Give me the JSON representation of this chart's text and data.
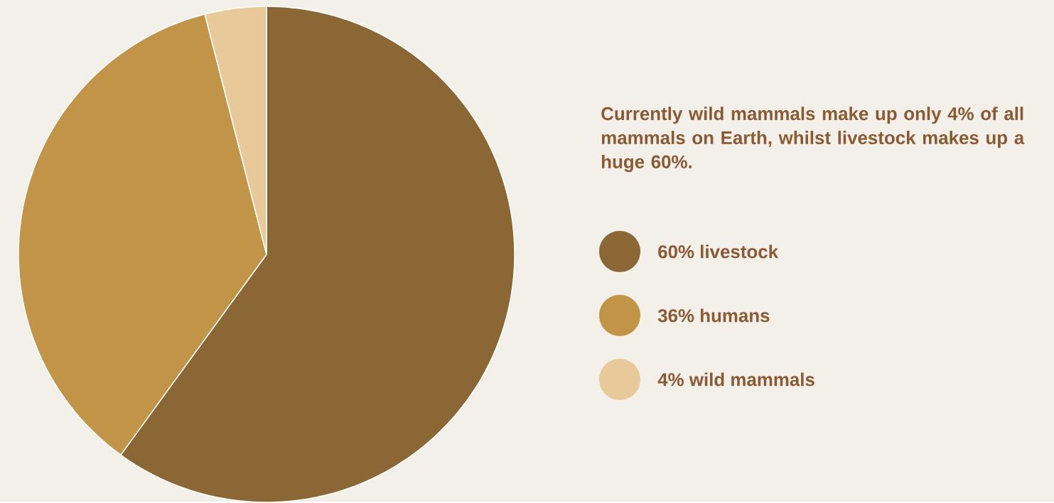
{
  "chart_data": {
    "type": "pie",
    "categories": [
      "60% livestock",
      "36% humans",
      "4% wild mammals"
    ],
    "values": [
      60,
      36,
      4
    ],
    "colors": [
      "#8c6736",
      "#c19448",
      "#e8c99a"
    ],
    "legend": "right",
    "annotations": [
      "Currently wild mammals make up only 4% of all mammals on Earth, whilst livestock makes up a huge 60%."
    ]
  }
}
